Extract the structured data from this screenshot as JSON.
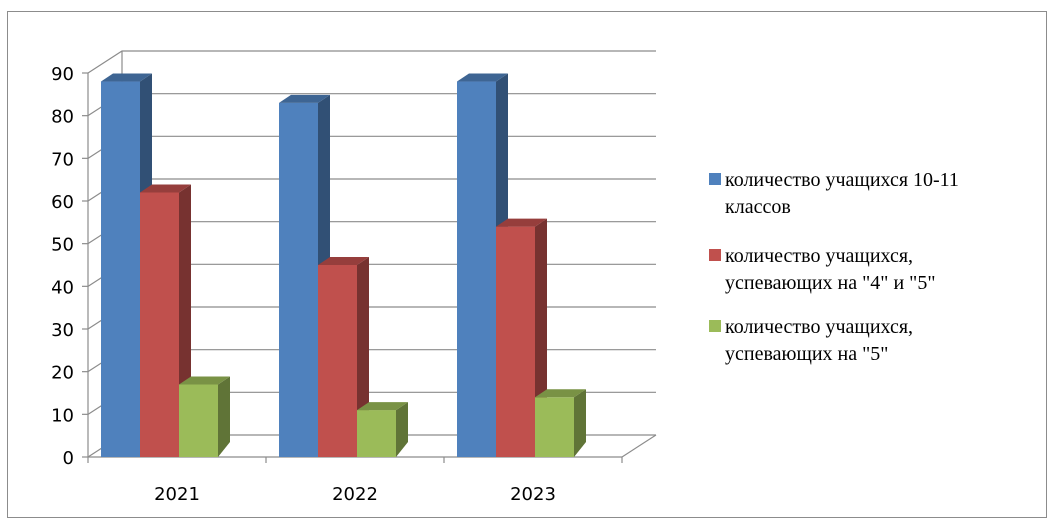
{
  "chart_data": {
    "type": "bar",
    "title": "",
    "xlabel": "",
    "ylabel": "",
    "categories": [
      "2021",
      "2022",
      "2023"
    ],
    "series": [
      {
        "name": "количество учащихся 10-11 классов",
        "values": [
          88,
          83,
          88
        ],
        "color": "#4f81bd"
      },
      {
        "name": "количество учащихся, успевающих на \"4\" и \"5\"",
        "values": [
          62,
          45,
          54
        ],
        "color": "#c0504d"
      },
      {
        "name": "количество учащихся, успевающих на \"5\"",
        "values": [
          17,
          11,
          14
        ],
        "color": "#9bbb59"
      }
    ],
    "ylim": [
      0,
      90
    ],
    "yticks": [
      0,
      10,
      20,
      30,
      40,
      50,
      60,
      70,
      80,
      90
    ],
    "grid": true,
    "legend_position": "right",
    "style": "3d-clustered-column"
  },
  "legend": {
    "items": [
      {
        "lines": [
          "количество учащихся 10-11",
          "классов"
        ]
      },
      {
        "lines": [
          "количество учащихся,",
          "успевающих на \"4\" и \"5\""
        ]
      },
      {
        "lines": [
          "количество учащихся,",
          "успевающих на \"5\""
        ]
      }
    ]
  }
}
